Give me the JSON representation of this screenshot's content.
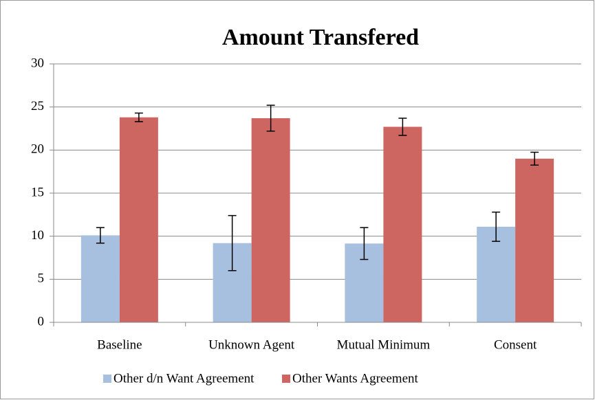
{
  "chart_data": {
    "type": "bar",
    "title": "Amount Transfered",
    "categories": [
      "Baseline",
      "Unknown Agent",
      "Mutual Minimum",
      "Consent"
    ],
    "series": [
      {
        "name": "Other d/n Want Agreement",
        "color": "#a7c0df",
        "values": [
          10.1,
          9.2,
          9.15,
          11.1
        ],
        "errors": [
          0.9,
          3.2,
          1.85,
          1.7
        ]
      },
      {
        "name": "Other Wants Agreement",
        "color": "#cd6560",
        "values": [
          23.8,
          23.7,
          22.7,
          19.0
        ],
        "errors": [
          0.5,
          1.5,
          1.0,
          0.75
        ]
      }
    ],
    "ylim": [
      0,
      30
    ],
    "yticks": [
      0,
      5,
      10,
      15,
      20,
      25,
      30
    ],
    "grid": true,
    "legend": "bottom"
  }
}
